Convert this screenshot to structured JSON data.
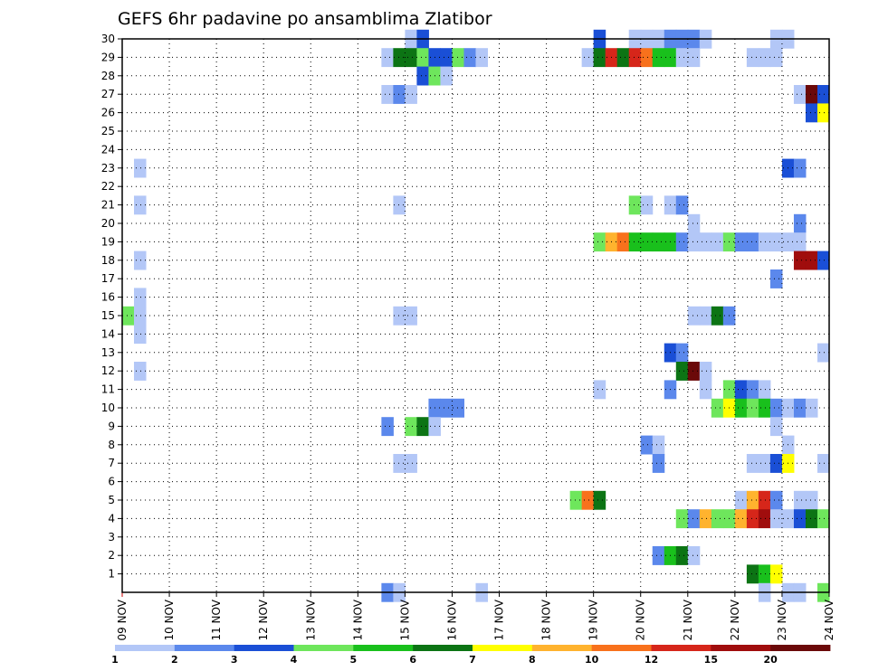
{
  "chart_data": {
    "type": "heatmap",
    "title": "GEFS 6hr padavine po ansamblima Zlatibor",
    "xlabel": "",
    "ylabel": "",
    "x_ticks": [
      "09 NOV",
      "10 NOV",
      "11 NOV",
      "12 NOV",
      "13 NOV",
      "14 NOV",
      "15 NOV",
      "16 NOV",
      "17 NOV",
      "18 NOV",
      "19 NOV",
      "20 NOV",
      "21 NOV",
      "22 NOV",
      "23 NOV",
      "24 NOV"
    ],
    "y_ticks": [
      "1",
      "2",
      "3",
      "4",
      "5",
      "6",
      "7",
      "8",
      "9",
      "10",
      "11",
      "12",
      "13",
      "14",
      "15",
      "16",
      "17",
      "18",
      "19",
      "20",
      "21",
      "22",
      "23",
      "24",
      "25",
      "26",
      "27",
      "28",
      "29",
      "30"
    ],
    "x_range": [
      0,
      60
    ],
    "y_range": [
      0,
      30
    ],
    "grid": true,
    "grid_style": "dotted",
    "colorbar": {
      "position": "bottom",
      "labels": [
        "1",
        "2",
        "3",
        "4",
        "5",
        "6",
        "7",
        "8",
        "10",
        "12",
        "15",
        "20"
      ],
      "colors": [
        "#b3c7f7",
        "#5b88ec",
        "#1a4fd6",
        "#6ee65c",
        "#19c01c",
        "#0c7414",
        "#ffff00",
        "#ffb32e",
        "#f8711c",
        "#d6261a",
        "#a00d0d",
        "#6b0909"
      ]
    },
    "cells": [
      {
        "t": 24,
        "m": 30,
        "c": 0
      },
      {
        "t": 25,
        "m": 30,
        "c": 2
      },
      {
        "t": 43,
        "m": 30,
        "c": 0
      },
      {
        "t": 44,
        "m": 30,
        "c": 0
      },
      {
        "t": 45,
        "m": 30,
        "c": 0
      },
      {
        "t": 46,
        "m": 30,
        "c": 1
      },
      {
        "t": 47,
        "m": 30,
        "c": 1
      },
      {
        "t": 48,
        "m": 30,
        "c": 1
      },
      {
        "t": 49,
        "m": 30,
        "c": 0
      },
      {
        "t": 55,
        "m": 30,
        "c": 0
      },
      {
        "t": 56,
        "m": 30,
        "c": 0
      },
      {
        "t": 40,
        "m": 30,
        "c": 2
      },
      {
        "t": 22,
        "m": 29,
        "c": 0
      },
      {
        "t": 23,
        "m": 29,
        "c": 5
      },
      {
        "t": 24,
        "m": 29,
        "c": 5
      },
      {
        "t": 25,
        "m": 29,
        "c": 3
      },
      {
        "t": 26,
        "m": 29,
        "c": 2
      },
      {
        "t": 27,
        "m": 29,
        "c": 2
      },
      {
        "t": 28,
        "m": 29,
        "c": 3
      },
      {
        "t": 29,
        "m": 29,
        "c": 1
      },
      {
        "t": 30,
        "m": 29,
        "c": 0
      },
      {
        "t": 39,
        "m": 29,
        "c": 0
      },
      {
        "t": 40,
        "m": 29,
        "c": 5
      },
      {
        "t": 41,
        "m": 29,
        "c": 9
      },
      {
        "t": 42,
        "m": 29,
        "c": 5
      },
      {
        "t": 43,
        "m": 29,
        "c": 9
      },
      {
        "t": 44,
        "m": 29,
        "c": 8
      },
      {
        "t": 45,
        "m": 29,
        "c": 4
      },
      {
        "t": 46,
        "m": 29,
        "c": 4
      },
      {
        "t": 47,
        "m": 29,
        "c": 0
      },
      {
        "t": 48,
        "m": 29,
        "c": 0
      },
      {
        "t": 53,
        "m": 29,
        "c": 0
      },
      {
        "t": 54,
        "m": 29,
        "c": 0
      },
      {
        "t": 55,
        "m": 29,
        "c": 0
      },
      {
        "t": 25,
        "m": 28,
        "c": 2
      },
      {
        "t": 26,
        "m": 28,
        "c": 3
      },
      {
        "t": 27,
        "m": 28,
        "c": 0
      },
      {
        "t": 22,
        "m": 27,
        "c": 0
      },
      {
        "t": 23,
        "m": 27,
        "c": 1
      },
      {
        "t": 24,
        "m": 27,
        "c": 0
      },
      {
        "t": 57,
        "m": 27,
        "c": 0
      },
      {
        "t": 58,
        "m": 27,
        "c": 11
      },
      {
        "t": 59,
        "m": 27,
        "c": 2
      },
      {
        "t": 58,
        "m": 26,
        "c": 2
      },
      {
        "t": 59,
        "m": 26,
        "c": 6
      },
      {
        "t": 1,
        "m": 23,
        "c": 0
      },
      {
        "t": 56,
        "m": 23,
        "c": 2
      },
      {
        "t": 57,
        "m": 23,
        "c": 1
      },
      {
        "t": 1,
        "m": 21,
        "c": 0
      },
      {
        "t": 23,
        "m": 21,
        "c": 0
      },
      {
        "t": 43,
        "m": 21,
        "c": 3
      },
      {
        "t": 44,
        "m": 21,
        "c": 0
      },
      {
        "t": 46,
        "m": 21,
        "c": 0
      },
      {
        "t": 47,
        "m": 21,
        "c": 1
      },
      {
        "t": 48,
        "m": 20,
        "c": 0
      },
      {
        "t": 57,
        "m": 20,
        "c": 1
      },
      {
        "t": 40,
        "m": 19,
        "c": 3
      },
      {
        "t": 41,
        "m": 19,
        "c": 7
      },
      {
        "t": 42,
        "m": 19,
        "c": 8
      },
      {
        "t": 43,
        "m": 19,
        "c": 4
      },
      {
        "t": 44,
        "m": 19,
        "c": 4
      },
      {
        "t": 45,
        "m": 19,
        "c": 4
      },
      {
        "t": 46,
        "m": 19,
        "c": 4
      },
      {
        "t": 47,
        "m": 19,
        "c": 1
      },
      {
        "t": 48,
        "m": 19,
        "c": 0
      },
      {
        "t": 49,
        "m": 19,
        "c": 0
      },
      {
        "t": 50,
        "m": 19,
        "c": 0
      },
      {
        "t": 51,
        "m": 19,
        "c": 3
      },
      {
        "t": 52,
        "m": 19,
        "c": 1
      },
      {
        "t": 53,
        "m": 19,
        "c": 1
      },
      {
        "t": 54,
        "m": 19,
        "c": 0
      },
      {
        "t": 55,
        "m": 19,
        "c": 0
      },
      {
        "t": 56,
        "m": 19,
        "c": 0
      },
      {
        "t": 57,
        "m": 19,
        "c": 0
      },
      {
        "t": 1,
        "m": 18,
        "c": 0
      },
      {
        "t": 57,
        "m": 18,
        "c": 10
      },
      {
        "t": 58,
        "m": 18,
        "c": 10
      },
      {
        "t": 59,
        "m": 18,
        "c": 2
      },
      {
        "t": 55,
        "m": 17,
        "c": 1
      },
      {
        "t": 0,
        "m": 15,
        "c": 3
      },
      {
        "t": 1,
        "m": 15,
        "c": 0
      },
      {
        "t": 1,
        "m": 16,
        "c": 0
      },
      {
        "t": 1,
        "m": 14,
        "c": 0
      },
      {
        "t": 23,
        "m": 15,
        "c": 0
      },
      {
        "t": 24,
        "m": 15,
        "c": 0
      },
      {
        "t": 48,
        "m": 15,
        "c": 0
      },
      {
        "t": 49,
        "m": 15,
        "c": 0
      },
      {
        "t": 50,
        "m": 15,
        "c": 5
      },
      {
        "t": 51,
        "m": 15,
        "c": 1
      },
      {
        "t": 46,
        "m": 13,
        "c": 2
      },
      {
        "t": 47,
        "m": 13,
        "c": 1
      },
      {
        "t": 59,
        "m": 13,
        "c": 0
      },
      {
        "t": 1,
        "m": 12,
        "c": 0
      },
      {
        "t": 47,
        "m": 12,
        "c": 5
      },
      {
        "t": 48,
        "m": 12,
        "c": 11
      },
      {
        "t": 49,
        "m": 12,
        "c": 0
      },
      {
        "t": 40,
        "m": 11,
        "c": 0
      },
      {
        "t": 46,
        "m": 11,
        "c": 1
      },
      {
        "t": 49,
        "m": 11,
        "c": 0
      },
      {
        "t": 51,
        "m": 11,
        "c": 3
      },
      {
        "t": 52,
        "m": 11,
        "c": 2
      },
      {
        "t": 53,
        "m": 11,
        "c": 1
      },
      {
        "t": 54,
        "m": 11,
        "c": 0
      },
      {
        "t": 26,
        "m": 10,
        "c": 1
      },
      {
        "t": 27,
        "m": 10,
        "c": 1
      },
      {
        "t": 28,
        "m": 10,
        "c": 1
      },
      {
        "t": 50,
        "m": 10,
        "c": 3
      },
      {
        "t": 51,
        "m": 10,
        "c": 6
      },
      {
        "t": 52,
        "m": 10,
        "c": 4
      },
      {
        "t": 53,
        "m": 10,
        "c": 3
      },
      {
        "t": 54,
        "m": 10,
        "c": 4
      },
      {
        "t": 55,
        "m": 10,
        "c": 1
      },
      {
        "t": 56,
        "m": 10,
        "c": 0
      },
      {
        "t": 57,
        "m": 10,
        "c": 1
      },
      {
        "t": 58,
        "m": 10,
        "c": 0
      },
      {
        "t": 22,
        "m": 9,
        "c": 1
      },
      {
        "t": 24,
        "m": 9,
        "c": 3
      },
      {
        "t": 25,
        "m": 9,
        "c": 5
      },
      {
        "t": 26,
        "m": 9,
        "c": 0
      },
      {
        "t": 55,
        "m": 9,
        "c": 0
      },
      {
        "t": 44,
        "m": 8,
        "c": 1
      },
      {
        "t": 45,
        "m": 8,
        "c": 0
      },
      {
        "t": 56,
        "m": 8,
        "c": 0
      },
      {
        "t": 23,
        "m": 7,
        "c": 0
      },
      {
        "t": 24,
        "m": 7,
        "c": 0
      },
      {
        "t": 45,
        "m": 7,
        "c": 1
      },
      {
        "t": 53,
        "m": 7,
        "c": 0
      },
      {
        "t": 54,
        "m": 7,
        "c": 0
      },
      {
        "t": 55,
        "m": 7,
        "c": 2
      },
      {
        "t": 56,
        "m": 7,
        "c": 6
      },
      {
        "t": 59,
        "m": 7,
        "c": 0
      },
      {
        "t": 38,
        "m": 5,
        "c": 3
      },
      {
        "t": 39,
        "m": 5,
        "c": 8
      },
      {
        "t": 40,
        "m": 5,
        "c": 5
      },
      {
        "t": 52,
        "m": 5,
        "c": 0
      },
      {
        "t": 53,
        "m": 5,
        "c": 7
      },
      {
        "t": 54,
        "m": 5,
        "c": 9
      },
      {
        "t": 55,
        "m": 5,
        "c": 1
      },
      {
        "t": 57,
        "m": 5,
        "c": 0
      },
      {
        "t": 58,
        "m": 5,
        "c": 0
      },
      {
        "t": 47,
        "m": 4,
        "c": 3
      },
      {
        "t": 48,
        "m": 4,
        "c": 1
      },
      {
        "t": 49,
        "m": 4,
        "c": 7
      },
      {
        "t": 50,
        "m": 4,
        "c": 3
      },
      {
        "t": 51,
        "m": 4,
        "c": 3
      },
      {
        "t": 52,
        "m": 4,
        "c": 7
      },
      {
        "t": 53,
        "m": 4,
        "c": 9
      },
      {
        "t": 54,
        "m": 4,
        "c": 10
      },
      {
        "t": 55,
        "m": 4,
        "c": 0
      },
      {
        "t": 56,
        "m": 4,
        "c": 0
      },
      {
        "t": 57,
        "m": 4,
        "c": 2
      },
      {
        "t": 58,
        "m": 4,
        "c": 5
      },
      {
        "t": 59,
        "m": 4,
        "c": 3
      },
      {
        "t": 45,
        "m": 2,
        "c": 1
      },
      {
        "t": 46,
        "m": 2,
        "c": 4
      },
      {
        "t": 47,
        "m": 2,
        "c": 5
      },
      {
        "t": 48,
        "m": 2,
        "c": 0
      },
      {
        "t": 53,
        "m": 1,
        "c": 5
      },
      {
        "t": 54,
        "m": 1,
        "c": 4
      },
      {
        "t": 55,
        "m": 1,
        "c": 6
      },
      {
        "t": 22,
        "m": 0,
        "c": 1
      },
      {
        "t": 23,
        "m": 0,
        "c": 0
      },
      {
        "t": 30,
        "m": 0,
        "c": 0
      },
      {
        "t": 54,
        "m": 0,
        "c": 0
      },
      {
        "t": 56,
        "m": 0,
        "c": 0
      },
      {
        "t": 57,
        "m": 0,
        "c": 0
      },
      {
        "t": 59,
        "m": 0,
        "c": 3
      }
    ]
  }
}
